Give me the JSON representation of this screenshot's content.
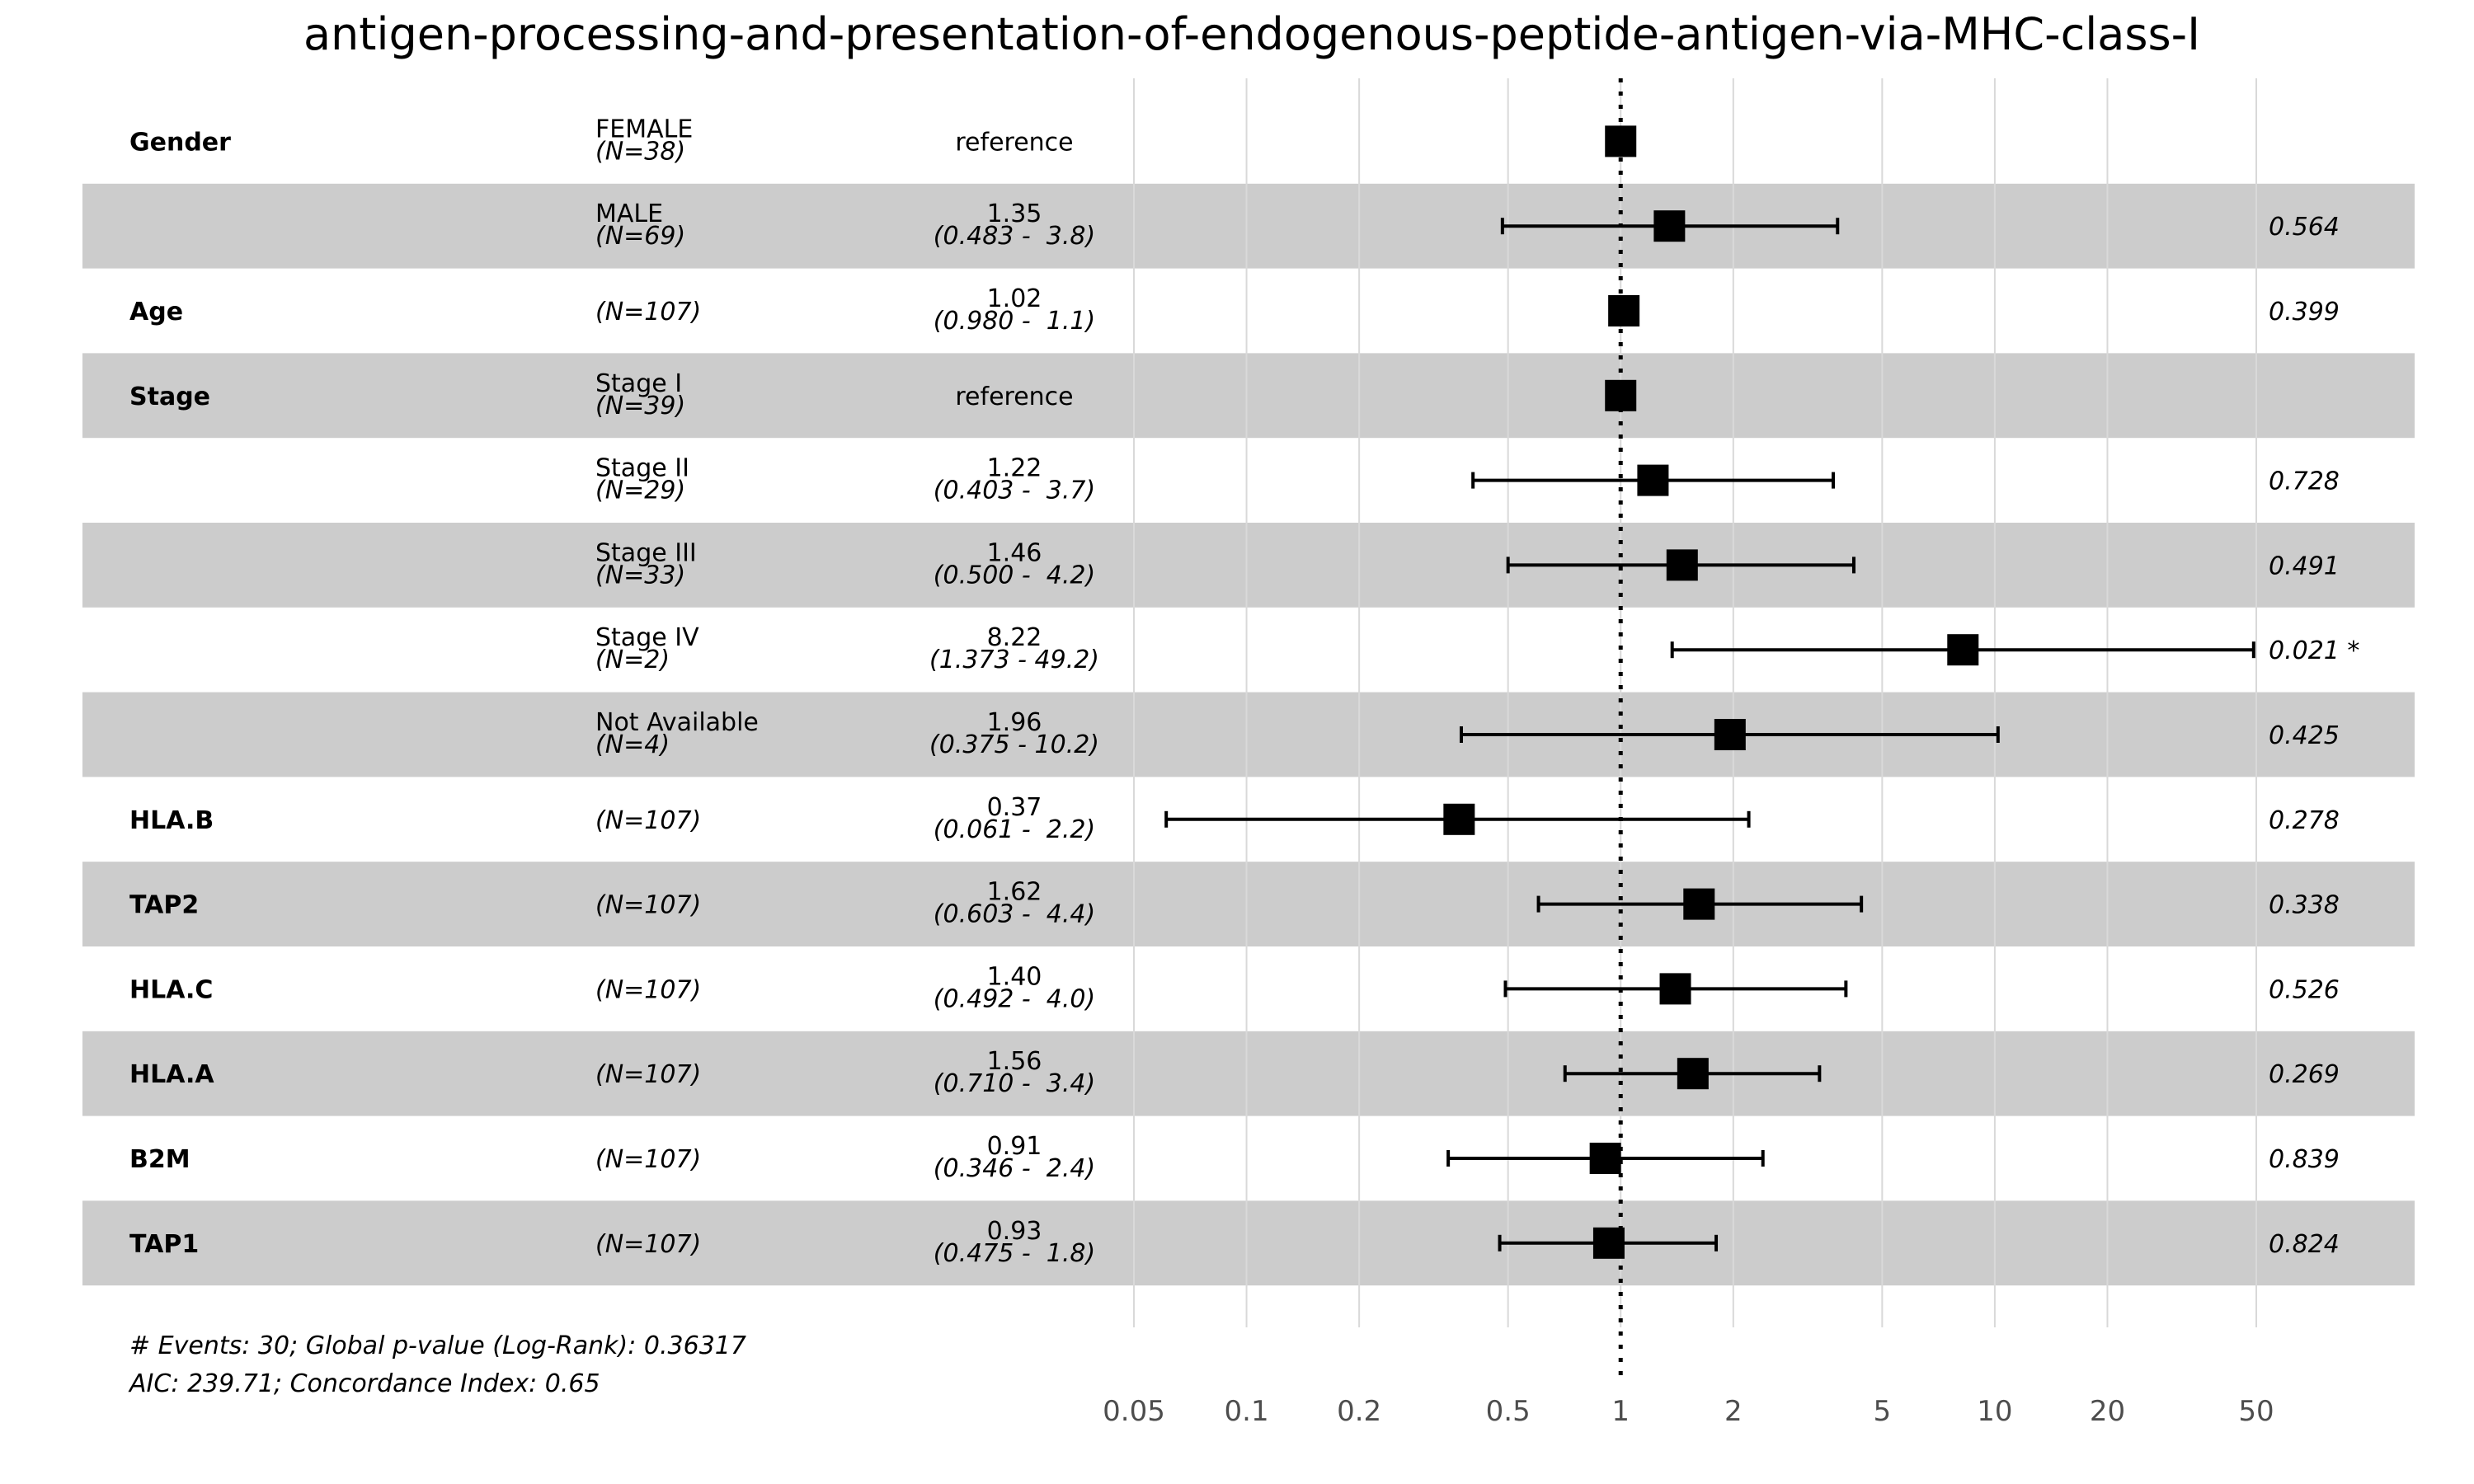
{
  "chart_data": {
    "type": "forest",
    "title": "antigen-processing-and-presentation-of-endogenous-peptide-antigen-via-MHC-class-I",
    "x_scale": "log",
    "xlim": [
      0.05,
      50
    ],
    "reference_line": 1,
    "x_ticks": [
      0.05,
      0.1,
      0.2,
      0.5,
      1,
      2,
      5,
      10,
      20,
      50
    ],
    "x_tick_labels": [
      "0.05",
      "0.1",
      "0.2",
      "0.5",
      "1",
      "2",
      "5",
      "10",
      "20",
      "50"
    ],
    "grid": true,
    "rows": [
      {
        "variable": "Gender",
        "level": "FEMALE",
        "n": "(N=38)",
        "hr_text": "reference",
        "ci_text": "",
        "hr": 1.0,
        "ci_low": null,
        "ci_high": null,
        "p": "",
        "shaded": false
      },
      {
        "variable": "",
        "level": "MALE",
        "n": "(N=69)",
        "hr_text": "1.35",
        "ci_text": "(0.483 -  3.8)",
        "hr": 1.35,
        "ci_low": 0.483,
        "ci_high": 3.8,
        "p": "0.564",
        "shaded": true
      },
      {
        "variable": "Age",
        "level": "",
        "n": "(N=107)",
        "hr_text": "1.02",
        "ci_text": "(0.980 -  1.1)",
        "hr": 1.02,
        "ci_low": 0.98,
        "ci_high": 1.1,
        "p": "0.399",
        "shaded": false
      },
      {
        "variable": "Stage",
        "level": "Stage I",
        "n": "(N=39)",
        "hr_text": "reference",
        "ci_text": "",
        "hr": 1.0,
        "ci_low": null,
        "ci_high": null,
        "p": "",
        "shaded": true
      },
      {
        "variable": "",
        "level": "Stage II",
        "n": "(N=29)",
        "hr_text": "1.22",
        "ci_text": "(0.403 -  3.7)",
        "hr": 1.22,
        "ci_low": 0.403,
        "ci_high": 3.7,
        "p": "0.728",
        "shaded": false
      },
      {
        "variable": "",
        "level": "Stage III",
        "n": "(N=33)",
        "hr_text": "1.46",
        "ci_text": "(0.500 -  4.2)",
        "hr": 1.46,
        "ci_low": 0.5,
        "ci_high": 4.2,
        "p": "0.491",
        "shaded": true
      },
      {
        "variable": "",
        "level": "Stage IV",
        "n": "(N=2)",
        "hr_text": "8.22",
        "ci_text": "(1.373 - 49.2)",
        "hr": 8.22,
        "ci_low": 1.373,
        "ci_high": 49.2,
        "p": "0.021 *",
        "shaded": false
      },
      {
        "variable": "",
        "level": "Not Available",
        "n": "(N=4)",
        "hr_text": "1.96",
        "ci_text": "(0.375 - 10.2)",
        "hr": 1.96,
        "ci_low": 0.375,
        "ci_high": 10.2,
        "p": "0.425",
        "shaded": true
      },
      {
        "variable": "HLA.B",
        "level": "",
        "n": "(N=107)",
        "hr_text": "0.37",
        "ci_text": "(0.061 -  2.2)",
        "hr": 0.37,
        "ci_low": 0.061,
        "ci_high": 2.2,
        "p": "0.278",
        "shaded": false
      },
      {
        "variable": "TAP2",
        "level": "",
        "n": "(N=107)",
        "hr_text": "1.62",
        "ci_text": "(0.603 -  4.4)",
        "hr": 1.62,
        "ci_low": 0.603,
        "ci_high": 4.4,
        "p": "0.338",
        "shaded": true
      },
      {
        "variable": "HLA.C",
        "level": "",
        "n": "(N=107)",
        "hr_text": "1.40",
        "ci_text": "(0.492 -  4.0)",
        "hr": 1.4,
        "ci_low": 0.492,
        "ci_high": 4.0,
        "p": "0.526",
        "shaded": false
      },
      {
        "variable": "HLA.A",
        "level": "",
        "n": "(N=107)",
        "hr_text": "1.56",
        "ci_text": "(0.710 -  3.4)",
        "hr": 1.56,
        "ci_low": 0.71,
        "ci_high": 3.4,
        "p": "0.269",
        "shaded": true
      },
      {
        "variable": "B2M",
        "level": "",
        "n": "(N=107)",
        "hr_text": "0.91",
        "ci_text": "(0.346 -  2.4)",
        "hr": 0.91,
        "ci_low": 0.346,
        "ci_high": 2.4,
        "p": "0.839",
        "shaded": false
      },
      {
        "variable": "TAP1",
        "level": "",
        "n": "(N=107)",
        "hr_text": "0.93",
        "ci_text": "(0.475 -  1.8)",
        "hr": 0.93,
        "ci_low": 0.475,
        "ci_high": 1.8,
        "p": "0.824",
        "shaded": true
      }
    ],
    "footnotes": [
      "# Events: 30; Global p-value (Log-Rank): 0.36317",
      "AIC: 239.71; Concordance Index: 0.65"
    ],
    "colors": {
      "shade": "#cccccc",
      "marker": "#000000",
      "grid": "#d9d9d9",
      "tick_text": "#4d4d4d"
    }
  }
}
